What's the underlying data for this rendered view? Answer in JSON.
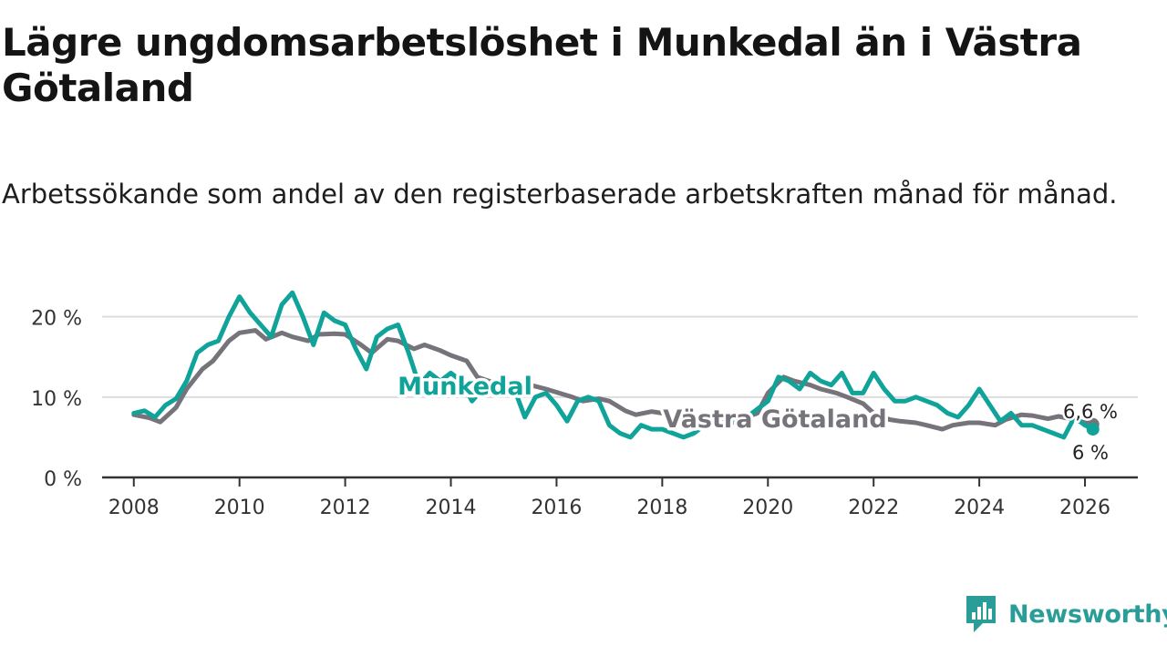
{
  "title": "Lägre ungdomsarbetslöshet i Munkedal än i Västra Götaland",
  "subtitle": "Arbetssökande som andel av den registerbaserade arbetskraften månad för månad.",
  "brand": {
    "name": "Newsworthy",
    "icon": "newsworthy-logo-icon"
  },
  "colors": {
    "munkedal": "#0fa39a",
    "vastra_gotaland": "#76737a",
    "grid": "#dddddd",
    "axis": "#333333"
  },
  "chart_data": {
    "type": "line",
    "title": "Lägre ungdomsarbetslöshet i Munkedal än i Västra Götaland",
    "xlabel": "",
    "ylabel": "",
    "xlim": [
      2007.4,
      2027.0
    ],
    "ylim": [
      0,
      22
    ],
    "x_ticks": [
      2008,
      2010,
      2012,
      2014,
      2016,
      2018,
      2020,
      2022,
      2024,
      2026
    ],
    "x_tick_labels": [
      "2008",
      "2010",
      "2012",
      "2014",
      "2016",
      "2018",
      "2020",
      "2022",
      "2024",
      "2026"
    ],
    "y_ticks": [
      0,
      10,
      20
    ],
    "y_tick_labels": [
      "0 %",
      "10 %",
      "20 %"
    ],
    "series": [
      {
        "name": "Västra Götaland",
        "label": "Västra Götaland",
        "end_label": "6,6 %",
        "x": [
          2008.0,
          2008.3,
          2008.5,
          2008.8,
          2009.0,
          2009.3,
          2009.5,
          2009.8,
          2010.0,
          2010.3,
          2010.5,
          2010.8,
          2011.0,
          2011.3,
          2011.5,
          2011.8,
          2012.0,
          2012.3,
          2012.5,
          2012.8,
          2013.0,
          2013.3,
          2013.5,
          2013.8,
          2014.0,
          2014.3,
          2014.5,
          2014.8,
          2015.0,
          2015.3,
          2015.5,
          2015.8,
          2016.0,
          2016.3,
          2016.5,
          2016.8,
          2017.0,
          2017.3,
          2017.5,
          2017.8,
          2018.0,
          2018.3,
          2018.5,
          2018.8,
          2019.0,
          2019.3,
          2019.5,
          2019.8,
          2020.0,
          2020.3,
          2020.5,
          2020.8,
          2021.0,
          2021.3,
          2021.5,
          2021.8,
          2022.0,
          2022.3,
          2022.5,
          2022.8,
          2023.0,
          2023.3,
          2023.5,
          2023.8,
          2024.0,
          2024.3,
          2024.5,
          2024.8,
          2025.0,
          2025.3,
          2025.5,
          2025.8,
          2026.0,
          2026.15
        ],
        "values": [
          7.8,
          7.4,
          6.9,
          8.7,
          11.0,
          13.5,
          14.5,
          17.0,
          18.0,
          18.3,
          17.2,
          18.0,
          17.5,
          17.0,
          17.8,
          17.9,
          17.8,
          16.5,
          15.5,
          17.2,
          17.0,
          16.0,
          16.5,
          15.8,
          15.2,
          14.5,
          12.5,
          11.8,
          11.2,
          11.0,
          11.5,
          11.0,
          10.6,
          10.0,
          9.5,
          9.8,
          9.5,
          8.3,
          7.8,
          8.2,
          8.0,
          7.5,
          7.2,
          7.0,
          7.2,
          6.9,
          7.3,
          8.0,
          10.5,
          12.5,
          12.0,
          11.5,
          11.0,
          10.5,
          10.0,
          9.2,
          8.0,
          7.2,
          7.0,
          6.8,
          6.5,
          6.0,
          6.5,
          6.8,
          6.8,
          6.5,
          7.2,
          7.8,
          7.7,
          7.3,
          7.6,
          7.2,
          6.8,
          6.6
        ]
      },
      {
        "name": "Munkedal",
        "label": "Munkedal",
        "end_label": "6 %",
        "x": [
          2008.0,
          2008.2,
          2008.4,
          2008.6,
          2008.8,
          2009.0,
          2009.2,
          2009.4,
          2009.6,
          2009.8,
          2010.0,
          2010.2,
          2010.4,
          2010.6,
          2010.8,
          2011.0,
          2011.2,
          2011.4,
          2011.6,
          2011.8,
          2012.0,
          2012.2,
          2012.4,
          2012.6,
          2012.8,
          2013.0,
          2013.2,
          2013.4,
          2013.6,
          2013.8,
          2014.0,
          2014.2,
          2014.4,
          2014.6,
          2014.8,
          2015.0,
          2015.2,
          2015.4,
          2015.6,
          2015.8,
          2016.0,
          2016.2,
          2016.4,
          2016.6,
          2016.8,
          2017.0,
          2017.2,
          2017.4,
          2017.6,
          2017.8,
          2018.0,
          2018.2,
          2018.4,
          2018.6,
          2018.8,
          2019.0,
          2019.2,
          2019.4,
          2019.6,
          2019.8,
          2020.0,
          2020.2,
          2020.4,
          2020.6,
          2020.8,
          2021.0,
          2021.2,
          2021.4,
          2021.6,
          2021.8,
          2022.0,
          2022.2,
          2022.4,
          2022.6,
          2022.8,
          2023.0,
          2023.2,
          2023.4,
          2023.6,
          2023.8,
          2024.0,
          2024.2,
          2024.4,
          2024.6,
          2024.8,
          2025.0,
          2025.2,
          2025.4,
          2025.6,
          2025.8,
          2026.0,
          2026.15
        ],
        "values": [
          8.0,
          8.3,
          7.5,
          9.0,
          9.8,
          12.0,
          15.5,
          16.5,
          17.0,
          20.0,
          22.5,
          20.5,
          19.0,
          17.5,
          21.5,
          23.0,
          20.0,
          16.5,
          20.5,
          19.5,
          19.0,
          16.0,
          13.5,
          17.5,
          18.5,
          19.0,
          15.5,
          11.5,
          13.0,
          12.0,
          13.0,
          12.0,
          9.5,
          11.0,
          11.5,
          12.0,
          11.0,
          7.5,
          10.0,
          10.5,
          9.0,
          7.0,
          9.5,
          10.0,
          9.5,
          6.5,
          5.5,
          5.0,
          6.5,
          6.0,
          6.0,
          5.5,
          5.0,
          5.5,
          6.5,
          7.0,
          6.5,
          7.0,
          7.5,
          8.5,
          9.5,
          12.5,
          12.0,
          11.0,
          13.0,
          12.0,
          11.5,
          13.0,
          10.5,
          10.5,
          13.0,
          11.0,
          9.5,
          9.5,
          10.0,
          9.5,
          9.0,
          8.0,
          7.5,
          9.0,
          11.0,
          9.0,
          7.0,
          8.0,
          6.5,
          6.5,
          6.0,
          5.5,
          5.0,
          7.5,
          6.5,
          6.0
        ]
      }
    ]
  }
}
